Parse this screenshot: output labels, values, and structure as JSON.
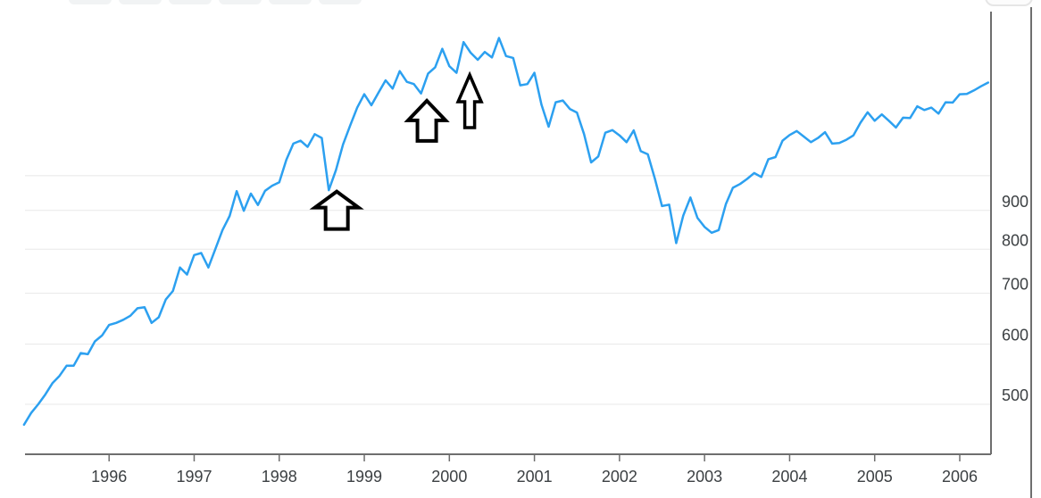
{
  "page": {
    "background": "#ffffff"
  },
  "toolbar": {
    "clipped_button_count": 6
  },
  "top_right_button": {
    "label": ""
  },
  "chart_data": {
    "type": "line",
    "title": "",
    "xlabel": "",
    "ylabel": "",
    "y_scale": "log",
    "frequency": "monthly",
    "x_start": "1995-01",
    "x_end": "2006-05",
    "x_axis": {
      "tick_labels": [
        "1996",
        "1997",
        "1998",
        "1999",
        "2000",
        "2001",
        "2002",
        "2003",
        "2004",
        "2005",
        "2006"
      ]
    },
    "y_axis": {
      "tick_labels": [
        "900",
        "800",
        "700",
        "600",
        "500"
      ],
      "tick_values": [
        900,
        800,
        700,
        600,
        500
      ],
      "gridline_values": [
        500,
        600,
        700,
        800,
        900,
        1000
      ],
      "visible_range": [
        440,
        1640
      ]
    },
    "series": [
      {
        "name": "index-price",
        "values": [
          470,
          487,
          500,
          515,
          533,
          545,
          562,
          562,
          584,
          582,
          605,
          616,
          636,
          640,
          646,
          654,
          669,
          671,
          640,
          651,
          687,
          705,
          757,
          741,
          786,
          791,
          757,
          801,
          848,
          885,
          954,
          899,
          947,
          915,
          955,
          970,
          980,
          1049,
          1102,
          1112,
          1091,
          1134,
          1121,
          957,
          1017,
          1099,
          1164,
          1229,
          1280,
          1238,
          1286,
          1335,
          1302,
          1373,
          1329,
          1320,
          1283,
          1363,
          1389,
          1469,
          1394,
          1366,
          1499,
          1452,
          1421,
          1455,
          1431,
          1518,
          1437,
          1429,
          1315,
          1320,
          1366,
          1240,
          1160,
          1249,
          1256,
          1224,
          1211,
          1134,
          1041,
          1060,
          1139,
          1148,
          1130,
          1107,
          1147,
          1077,
          1067,
          990,
          912,
          916,
          815,
          886,
          936,
          880,
          856,
          841,
          848,
          917,
          964,
          975,
          990,
          1008,
          996,
          1051,
          1058,
          1112,
          1131,
          1145,
          1126,
          1107,
          1121,
          1141,
          1102,
          1104,
          1115,
          1130,
          1174,
          1212,
          1181,
          1204,
          1181,
          1157,
          1192,
          1191,
          1234,
          1220,
          1229,
          1207,
          1249,
          1248,
          1280,
          1281,
          1295,
          1311,
          1326
        ]
      }
    ],
    "annotations": [
      {
        "name": "up-arrow-1998-dip",
        "t": 1998.676,
        "value": 953,
        "head_w": 49,
        "head_h": 18,
        "stem_w": 25,
        "total_h": 42,
        "stroke_w": 4
      },
      {
        "name": "up-arrow-late-1999",
        "t": 1999.735,
        "value": 1255,
        "head_w": 42,
        "head_h": 22,
        "stem_w": 21,
        "total_h": 45,
        "stroke_w": 4
      },
      {
        "name": "up-arrow-early-2000",
        "t": 2000.239,
        "value": 1357,
        "head_w": 26,
        "head_h": 30,
        "stem_w": 11,
        "total_h": 59,
        "stroke_w": 3.5
      }
    ],
    "colors": {
      "line": "#2CA0F0",
      "gridline": "#e8e8e8",
      "axis": "#6e6e6e",
      "label_text": "#3c4043",
      "arrow": "#000000"
    },
    "legend": {
      "visible": false
    }
  }
}
